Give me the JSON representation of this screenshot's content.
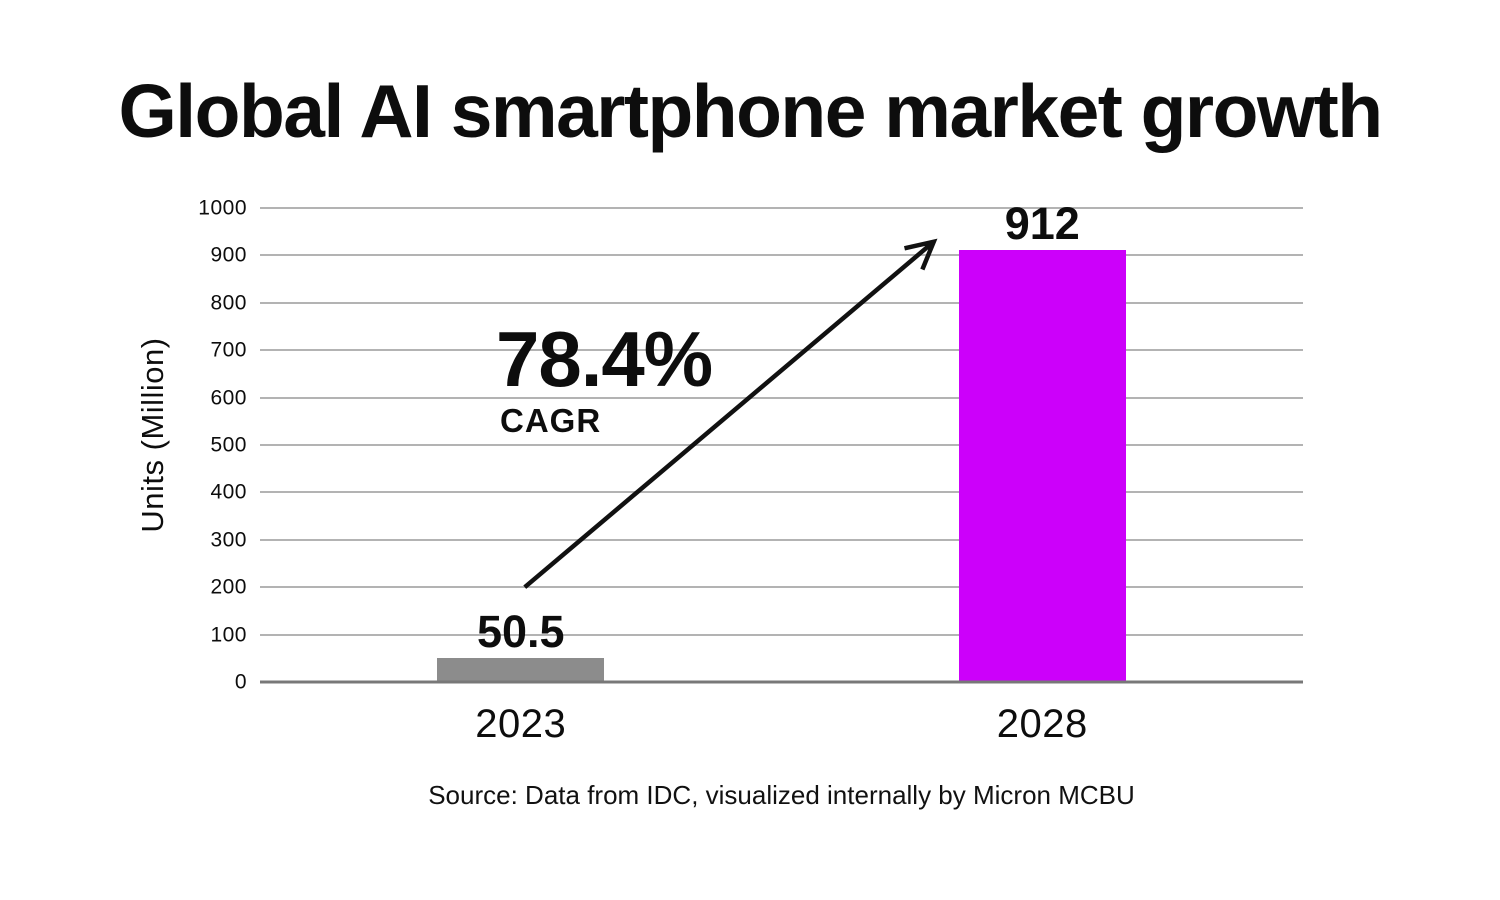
{
  "title": "Global AI smartphone market growth",
  "source": "Source: Data from IDC, visualized internally by Micron MCBU",
  "annotation": {
    "percent": "78.4%",
    "label": "CAGR"
  },
  "chart_data": {
    "type": "bar",
    "title": "Global AI smartphone market growth",
    "categories": [
      "2023",
      "2028"
    ],
    "values": [
      50.5,
      912
    ],
    "bar_labels": [
      "50.5",
      "912"
    ],
    "bar_colors": [
      "#8C8C8C",
      "#CC00FA"
    ],
    "xlabel": "",
    "ylabel": "Units (Million)",
    "ylim": [
      0,
      1000
    ],
    "yticks": [
      0,
      100,
      200,
      300,
      400,
      500,
      600,
      700,
      800,
      900,
      1000
    ],
    "grid": true,
    "legend": false,
    "annotation": {
      "text": "78.4%",
      "subtext": "CAGR",
      "type": "growth-arrow",
      "arrow_from_category": "2023",
      "arrow_to_category": "2028"
    },
    "source": "Source: Data from IDC, visualized internally by Micron MCBU",
    "colors": {
      "grid": "#b3b3b3",
      "axis": "#787878",
      "text": "#0d0d0d",
      "arrow": "#111111",
      "background": "#ffffff"
    }
  }
}
